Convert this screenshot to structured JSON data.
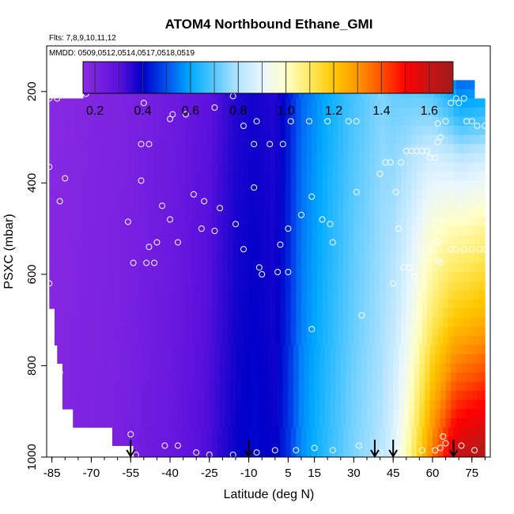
{
  "chart_data": {
    "type": "heatmap",
    "title": "ATOM4 Northbound Ethane_GMI",
    "subtitle_flights": "Flts: 7,8,9,10,11,12",
    "subtitle_dates": "MMDD: 0509,0512,0514,0517,0518,0519",
    "xlabel": "Latitude (deg N)",
    "ylabel": "PSXC (mbar)",
    "xlim": [
      -87,
      82
    ],
    "ylim": [
      1000,
      100
    ],
    "x_ticks": [
      -85,
      -70,
      -55,
      -40,
      -25,
      -10,
      5,
      15,
      30,
      45,
      60,
      75
    ],
    "x_tick_labels": [
      "-85",
      "-70",
      "-55",
      "-40",
      "-25",
      "-10",
      "5",
      "15",
      "30",
      "45",
      "60",
      "75"
    ],
    "y_ticks": [
      200,
      400,
      600,
      800,
      1000
    ],
    "y_tick_labels": [
      "200",
      "400",
      "600",
      "800",
      "1000"
    ],
    "colorbar": {
      "range": [
        0.15,
        1.7
      ],
      "ticks": [
        0.2,
        0.4,
        0.6,
        0.8,
        1.0,
        1.2,
        1.4,
        1.6
      ],
      "tick_labels": [
        "0.2",
        "0.4",
        "0.6",
        "0.8",
        "1.0",
        "1.2",
        "1.4",
        "1.6"
      ],
      "colors": [
        {
          "v": 0.15,
          "c": "#8a2be2"
        },
        {
          "v": 0.3,
          "c": "#5b10dd"
        },
        {
          "v": 0.4,
          "c": "#0000c8"
        },
        {
          "v": 0.5,
          "c": "#0050f0"
        },
        {
          "v": 0.6,
          "c": "#00aaff"
        },
        {
          "v": 0.7,
          "c": "#55c8ff"
        },
        {
          "v": 0.8,
          "c": "#b4e4ff"
        },
        {
          "v": 0.9,
          "c": "#e8f6ff"
        },
        {
          "v": 1.0,
          "c": "#ffffc8"
        },
        {
          "v": 1.1,
          "c": "#ffea60"
        },
        {
          "v": 1.2,
          "c": "#ffc800"
        },
        {
          "v": 1.3,
          "c": "#ff9600"
        },
        {
          "v": 1.4,
          "c": "#ff5000"
        },
        {
          "v": 1.5,
          "c": "#ff0000"
        },
        {
          "v": 1.6,
          "c": "#c81414"
        },
        {
          "v": 1.7,
          "c": "#a01a1a"
        }
      ]
    },
    "field_x_range": [
      -86,
      80
    ],
    "field_ranges": [
      {
        "p": 175,
        "x0": -73,
        "x1": 76
      },
      {
        "p": 215,
        "x0": -86,
        "x1": 80
      },
      {
        "p": 300,
        "x0": -86,
        "x1": 80
      },
      {
        "p": 400,
        "x0": -86,
        "x1": 80
      },
      {
        "p": 640,
        "x0": -86,
        "x1": 80
      },
      {
        "p": 680,
        "x0": -84,
        "x1": 80
      },
      {
        "p": 760,
        "x0": -83,
        "x1": 80
      },
      {
        "p": 800,
        "x0": -81,
        "x1": 80
      },
      {
        "p": 890,
        "x0": -77,
        "x1": 80
      },
      {
        "p": 930,
        "x0": -62,
        "x1": 80
      },
      {
        "p": 980,
        "x0": -54,
        "x1": 80
      },
      {
        "p": 1000,
        "x0": -54,
        "x1": 80
      }
    ],
    "band_profile": [
      {
        "x": -86,
        "v": 0.17
      },
      {
        "x": -60,
        "v": 0.2
      },
      {
        "x": -40,
        "v": 0.25
      },
      {
        "x": -25,
        "v": 0.31
      },
      {
        "x": -15,
        "v": 0.38
      },
      {
        "x": -8,
        "v": 0.4
      },
      {
        "x": 0,
        "v": 0.38
      },
      {
        "x": 5,
        "v": 0.45
      },
      {
        "x": 10,
        "v": 0.55
      },
      {
        "x": 20,
        "v": 0.64
      },
      {
        "x": 30,
        "v": 0.72
      },
      {
        "x": 40,
        "v": 0.78
      },
      {
        "x": 45,
        "v": 0.82
      },
      {
        "x": 50,
        "v": 0.9
      },
      {
        "x": 55,
        "v": 1.0
      },
      {
        "x": 60,
        "v": 1.1
      },
      {
        "x": 68,
        "v": 1.2
      },
      {
        "x": 80,
        "v": 1.25
      }
    ],
    "pressure_profile": [
      {
        "p": 175,
        "f": 0.45
      },
      {
        "p": 250,
        "f": 0.55
      },
      {
        "p": 350,
        "f": 0.7
      },
      {
        "p": 500,
        "f": 0.85
      },
      {
        "p": 700,
        "f": 1.0
      },
      {
        "p": 850,
        "f": 1.15
      },
      {
        "p": 1000,
        "f": 1.3
      }
    ],
    "points": [
      {
        "x": -86,
        "p": 215
      },
      {
        "x": -83,
        "p": 215
      },
      {
        "x": -75,
        "p": 205
      },
      {
        "x": -72,
        "p": 205
      },
      {
        "x": -67,
        "p": 190
      },
      {
        "x": -64,
        "p": 190
      },
      {
        "x": -60,
        "p": 190
      },
      {
        "x": -73,
        "p": 190
      },
      {
        "x": -50,
        "p": 225
      },
      {
        "x": -40,
        "p": 260
      },
      {
        "x": -39,
        "p": 250
      },
      {
        "x": -34,
        "p": 250
      },
      {
        "x": -23,
        "p": 235
      },
      {
        "x": -16,
        "p": 210
      },
      {
        "x": -12,
        "p": 275
      },
      {
        "x": -7,
        "p": 265
      },
      {
        "x": -8,
        "p": 315
      },
      {
        "x": -2,
        "p": 315
      },
      {
        "x": 3,
        "p": 315
      },
      {
        "x": 6,
        "p": 265
      },
      {
        "x": 13,
        "p": 265
      },
      {
        "x": 20,
        "p": 265
      },
      {
        "x": 28,
        "p": 265
      },
      {
        "x": 31,
        "p": 265
      },
      {
        "x": 37,
        "p": 185
      },
      {
        "x": -51,
        "p": 315
      },
      {
        "x": -48,
        "p": 315
      },
      {
        "x": -51,
        "p": 395
      },
      {
        "x": -86,
        "p": 365
      },
      {
        "x": -80,
        "p": 390
      },
      {
        "x": -82,
        "p": 440
      },
      {
        "x": -56,
        "p": 485
      },
      {
        "x": -43,
        "p": 450
      },
      {
        "x": -40,
        "p": 480
      },
      {
        "x": -37,
        "p": 530
      },
      {
        "x": -31,
        "p": 425
      },
      {
        "x": -27,
        "p": 440
      },
      {
        "x": -28,
        "p": 500
      },
      {
        "x": -23,
        "p": 505
      },
      {
        "x": -21,
        "p": 455
      },
      {
        "x": -15,
        "p": 490
      },
      {
        "x": -8,
        "p": 410
      },
      {
        "x": -12,
        "p": 545
      },
      {
        "x": -48,
        "p": 540
      },
      {
        "x": -45,
        "p": 530
      },
      {
        "x": -49,
        "p": 575
      },
      {
        "x": -46,
        "p": 575
      },
      {
        "x": -54,
        "p": 575
      },
      {
        "x": -86,
        "p": 620
      },
      {
        "x": -82,
        "p": 815
      },
      {
        "x": -6,
        "p": 585
      },
      {
        "x": -5,
        "p": 600
      },
      {
        "x": 1,
        "p": 595
      },
      {
        "x": 5,
        "p": 595
      },
      {
        "x": 5,
        "p": 500
      },
      {
        "x": 2,
        "p": 535
      },
      {
        "x": 10,
        "p": 470
      },
      {
        "x": 14,
        "p": 430
      },
      {
        "x": 18,
        "p": 480
      },
      {
        "x": 21,
        "p": 490
      },
      {
        "x": 22,
        "p": 530
      },
      {
        "x": 31,
        "p": 420
      },
      {
        "x": 33,
        "p": 690
      },
      {
        "x": 14,
        "p": 720
      },
      {
        "x": 40,
        "p": 380
      },
      {
        "x": 42,
        "p": 355
      },
      {
        "x": 44,
        "p": 355
      },
      {
        "x": 46,
        "p": 420
      },
      {
        "x": 48,
        "p": 355
      },
      {
        "x": 50,
        "p": 330
      },
      {
        "x": 52,
        "p": 330
      },
      {
        "x": 54,
        "p": 330
      },
      {
        "x": 56,
        "p": 330
      },
      {
        "x": 58,
        "p": 330
      },
      {
        "x": 59,
        "p": 345
      },
      {
        "x": 61,
        "p": 345
      },
      {
        "x": 62,
        "p": 310
      },
      {
        "x": 63,
        "p": 300
      },
      {
        "x": 62,
        "p": 270
      },
      {
        "x": 65,
        "p": 265
      },
      {
        "x": 67,
        "p": 225
      },
      {
        "x": 69,
        "p": 215
      },
      {
        "x": 70,
        "p": 225
      },
      {
        "x": 72,
        "p": 215
      },
      {
        "x": 73,
        "p": 265
      },
      {
        "x": 75,
        "p": 265
      },
      {
        "x": 77,
        "p": 275
      },
      {
        "x": 80,
        "p": 275
      },
      {
        "x": 47,
        "p": 500
      },
      {
        "x": 49,
        "p": 585
      },
      {
        "x": 51,
        "p": 585
      },
      {
        "x": 53,
        "p": 605
      },
      {
        "x": 45,
        "p": 620
      },
      {
        "x": 60,
        "p": 545
      },
      {
        "x": 62,
        "p": 570
      },
      {
        "x": 63,
        "p": 575
      },
      {
        "x": 62,
        "p": 530
      },
      {
        "x": 67,
        "p": 545
      },
      {
        "x": 69,
        "p": 545
      },
      {
        "x": 72,
        "p": 545
      },
      {
        "x": 75,
        "p": 545
      },
      {
        "x": 78,
        "p": 545
      },
      {
        "x": 80,
        "p": 545
      },
      {
        "x": 61,
        "p": 985
      },
      {
        "x": 63,
        "p": 980
      },
      {
        "x": 64,
        "p": 955
      },
      {
        "x": 65,
        "p": 970
      },
      {
        "x": 71,
        "p": 975
      },
      {
        "x": 76,
        "p": 985
      },
      {
        "x": -55,
        "p": 950
      },
      {
        "x": -53,
        "p": 995
      },
      {
        "x": -42,
        "p": 975
      },
      {
        "x": -37,
        "p": 975
      },
      {
        "x": -30,
        "p": 990
      },
      {
        "x": -25,
        "p": 995
      },
      {
        "x": -16,
        "p": 995
      },
      {
        "x": -7,
        "p": 990
      },
      {
        "x": 0,
        "p": 985
      },
      {
        "x": 8,
        "p": 985
      },
      {
        "x": 15,
        "p": 980
      },
      {
        "x": 22,
        "p": 985
      },
      {
        "x": 32,
        "p": 975
      },
      {
        "x": 40,
        "p": 990
      },
      {
        "x": 47,
        "p": 985
      },
      {
        "x": 56,
        "p": 985
      }
    ],
    "flight_markers_x": [
      -55,
      -10,
      38,
      45,
      68
    ]
  }
}
